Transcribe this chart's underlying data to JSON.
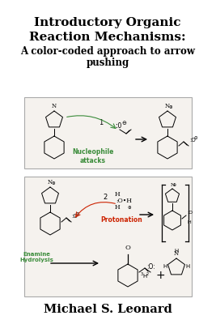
{
  "title_line1": "Introductory Organic",
  "title_line2": "Reaction Mechanisms:",
  "subtitle_line1": "A color-coded approach to arrow",
  "subtitle_line2": "pushing",
  "author": "Michael S. Leonard",
  "title_fontsize": 11,
  "subtitle_fontsize": 8.5,
  "author_fontsize": 10.5,
  "nucleophile_label": "Nucleophile\nattacks",
  "nucleophile_color": "#3a8c3a",
  "protonation_label": "Protonation",
  "protonation_color": "#cc2200",
  "enamine_label": "Enamine\nHydrolysis",
  "enamine_color": "#3a8c3a",
  "box_edge_color": "#aaaaaa",
  "box_face_color": "#f5f2ee",
  "white": "#ffffff",
  "black": "#111111"
}
